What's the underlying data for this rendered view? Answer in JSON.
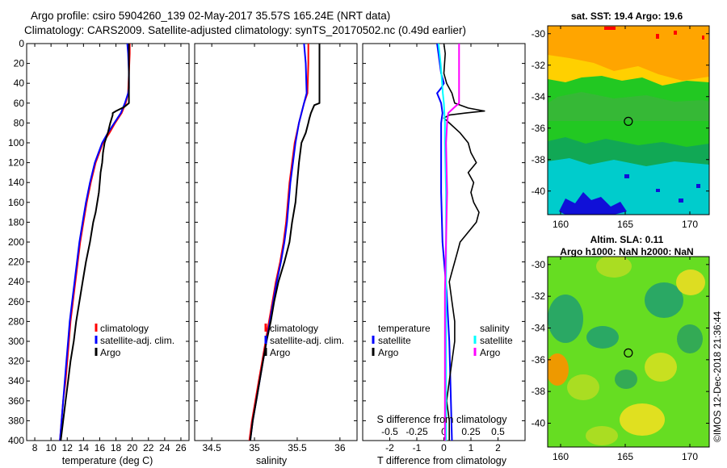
{
  "title_line1": "Argo profile: csiro 5904260_139 02-May-2017 35.57S 165.24E (NRT data)",
  "title_line2": "Climatology: CARS2009. Satellite-adjusted climatology: synTS_20170502.nc (0.49d earlier)",
  "colors": {
    "climatology": "#ff0000",
    "satellite": "#0000ff",
    "argo": "#000000",
    "sat_sal": "#00ffff",
    "argo_sal": "#ff00ff"
  },
  "legends": {
    "temperature": {
      "climatology": "climatology",
      "satellite": "satellite-adj. clim.",
      "argo": "Argo"
    },
    "salinity": {
      "climatology": "climatology",
      "satellite": "satellite-adj. clim.",
      "argo": "Argo"
    },
    "difference": {
      "temp_header": "temperature",
      "temp_satellite": "satellite",
      "temp_argo": "Argo",
      "sal_header": "salinity",
      "sal_satellite": "satellite",
      "sal_argo": "Argo"
    }
  },
  "sst_map": {
    "header": "sat. SST: 19.4 Argo: 19.6"
  },
  "sla_map": {
    "header1": "Altim. SLA: 0.11",
    "header2": "Argo h1000: NaN h2000: NaN"
  },
  "watermark": "©IMOS 12-Dec-2018 21:36:44",
  "chart_data": [
    {
      "type": "line",
      "name": "temperature",
      "xlabel": "temperature (deg C)",
      "ylabel": "",
      "xlim": [
        7,
        27
      ],
      "ylim": [
        400,
        0
      ],
      "xticks": [
        8,
        10,
        12,
        14,
        16,
        18,
        20,
        22,
        24,
        26
      ],
      "xtick_labels": [
        "8",
        "10",
        "12",
        "14",
        "16",
        "18",
        "20",
        "22",
        "24",
        "26"
      ],
      "yticks": [
        0,
        20,
        40,
        60,
        80,
        100,
        120,
        140,
        160,
        180,
        200,
        220,
        240,
        260,
        280,
        300,
        320,
        340,
        360,
        380,
        400
      ],
      "ytick_labels": [
        "0",
        "20",
        "40",
        "60",
        "80",
        "100",
        "120",
        "140",
        "160",
        "180",
        "200",
        "220",
        "240",
        "260",
        "280",
        "300",
        "320",
        "340",
        "360",
        "380",
        "400"
      ],
      "series": [
        {
          "name": "climatology",
          "depth": [
            0,
            10,
            30,
            50,
            60,
            70,
            80,
            90,
            100,
            120,
            140,
            160,
            180,
            200,
            220,
            240,
            260,
            280,
            300,
            320,
            340,
            360,
            380,
            400
          ],
          "values": [
            19.7,
            19.7,
            19.6,
            19.5,
            19.2,
            18.7,
            17.9,
            17.2,
            16.4,
            15.5,
            14.9,
            14.4,
            14.0,
            13.6,
            13.3,
            13.0,
            12.7,
            12.4,
            12.2,
            12.0,
            11.8,
            11.5,
            11.3,
            11.1
          ]
        },
        {
          "name": "satellite-adj. clim.",
          "depth": [
            0,
            10,
            30,
            45,
            50,
            60,
            70,
            80,
            90,
            100,
            120,
            140,
            160,
            180,
            200,
            220,
            240,
            260,
            280,
            300,
            320,
            340,
            360,
            380,
            400
          ],
          "values": [
            19.4,
            19.5,
            19.6,
            19.6,
            19.5,
            19.1,
            18.6,
            17.8,
            17.0,
            16.3,
            15.4,
            14.8,
            14.3,
            13.9,
            13.5,
            13.2,
            12.9,
            12.6,
            12.3,
            12.1,
            11.9,
            11.7,
            11.5,
            11.3,
            11.1
          ]
        },
        {
          "name": "Argo",
          "depth": [
            0,
            10,
            30,
            50,
            60,
            64,
            68,
            70,
            72,
            80,
            90,
            100,
            110,
            120,
            130,
            140,
            150,
            160,
            170,
            180,
            190,
            200,
            220,
            240,
            260,
            280,
            300,
            320,
            340,
            360,
            380,
            400
          ],
          "values": [
            19.6,
            19.6,
            19.6,
            19.6,
            19.6,
            19.0,
            18.0,
            17.6,
            17.6,
            17.3,
            17.0,
            16.6,
            16.4,
            16.3,
            16.1,
            16.0,
            15.9,
            15.7,
            15.5,
            15.2,
            15.0,
            14.8,
            14.3,
            13.9,
            13.5,
            13.1,
            12.8,
            12.4,
            12.1,
            11.8,
            11.5,
            11.2
          ]
        }
      ]
    },
    {
      "type": "line",
      "name": "salinity",
      "xlabel": "salinity",
      "ylabel": "",
      "xlim": [
        34.3,
        36.2
      ],
      "ylim": [
        400,
        0
      ],
      "xticks": [
        34.5,
        35,
        35.5,
        36
      ],
      "xtick_labels": [
        "34.5",
        "35",
        "35.5",
        "36"
      ],
      "series": [
        {
          "name": "climatology",
          "depth": [
            0,
            20,
            50,
            60,
            80,
            100,
            120,
            140,
            160,
            180,
            200,
            220,
            240,
            260,
            280,
            300,
            320,
            340,
            360,
            380,
            400
          ],
          "values": [
            35.63,
            35.63,
            35.62,
            35.58,
            35.52,
            35.47,
            35.44,
            35.41,
            35.39,
            35.37,
            35.34,
            35.3,
            35.25,
            35.21,
            35.17,
            35.13,
            35.09,
            35.05,
            35.01,
            34.97,
            34.94
          ]
        },
        {
          "name": "satellite-adj. clim.",
          "depth": [
            0,
            20,
            50,
            60,
            80,
            100,
            120,
            140,
            160,
            180,
            200,
            220,
            240,
            260,
            280,
            300,
            320,
            340,
            360,
            380,
            400
          ],
          "values": [
            35.58,
            35.6,
            35.61,
            35.58,
            35.52,
            35.48,
            35.45,
            35.42,
            35.4,
            35.38,
            35.35,
            35.31,
            35.26,
            35.22,
            35.18,
            35.14,
            35.1,
            35.06,
            35.02,
            34.98,
            34.95
          ]
        },
        {
          "name": "Argo",
          "depth": [
            0,
            5,
            20,
            50,
            60,
            62,
            70,
            76,
            80,
            90,
            100,
            120,
            140,
            160,
            180,
            200,
            220,
            240,
            260,
            280,
            300,
            320,
            340,
            360,
            380,
            400
          ],
          "values": [
            35.76,
            35.76,
            35.76,
            35.76,
            35.76,
            35.7,
            35.66,
            35.64,
            35.63,
            35.6,
            35.55,
            35.52,
            35.5,
            35.48,
            35.44,
            35.41,
            35.35,
            35.28,
            35.23,
            35.19,
            35.14,
            35.1,
            35.06,
            35.02,
            34.98,
            34.95
          ]
        }
      ]
    },
    {
      "type": "line",
      "name": "difference",
      "xlabel": "T difference from climatology",
      "x2label": "S difference from climatology",
      "xlim": [
        -3,
        3
      ],
      "x2lim": [
        -0.75,
        0.75
      ],
      "ylim": [
        400,
        0
      ],
      "xticks": [
        -2,
        -1,
        0,
        1,
        2
      ],
      "xtick_labels": [
        "-2",
        "-1",
        "0",
        "1",
        "2"
      ],
      "x2ticks": [
        -0.5,
        -0.25,
        0,
        0.25,
        0.5
      ],
      "x2tick_labels": [
        "-0.5",
        "-0.25",
        "0",
        "0.25",
        "0.5"
      ],
      "series": [
        {
          "name": "temperature satellite",
          "axis": "T",
          "depth": [
            0,
            10,
            30,
            40,
            45,
            50,
            60,
            70,
            80,
            100,
            150,
            200,
            250,
            300,
            350,
            400
          ],
          "values": [
            -0.25,
            -0.2,
            -0.1,
            0.0,
            -0.1,
            -0.25,
            -0.1,
            -0.05,
            -0.1,
            -0.1,
            -0.1,
            -0.05,
            0.1,
            0.2,
            0.25,
            0.3
          ]
        },
        {
          "name": "temperature Argo",
          "axis": "T",
          "depth": [
            0,
            10,
            30,
            40,
            50,
            60,
            65,
            68,
            70,
            72,
            75,
            80,
            90,
            100,
            110,
            120,
            130,
            140,
            150,
            160,
            170,
            180,
            190,
            200,
            210,
            220,
            230,
            240,
            260,
            280,
            300,
            320,
            340,
            360,
            380,
            400
          ],
          "values": [
            0.0,
            0.05,
            0.0,
            0.1,
            0.3,
            0.4,
            0.9,
            1.5,
            0.8,
            0.2,
            0.0,
            0.2,
            0.6,
            0.9,
            1.0,
            1.2,
            0.9,
            1.1,
            1.0,
            1.1,
            1.3,
            1.2,
            0.9,
            0.6,
            0.5,
            0.4,
            0.3,
            0.2,
            0.3,
            0.4,
            0.4,
            0.3,
            0.2,
            0.1,
            0.2,
            0.2
          ]
        },
        {
          "name": "salinity satellite",
          "axis": "S",
          "depth": [
            0,
            20,
            50,
            60,
            80,
            100,
            150,
            200,
            250,
            300,
            350,
            400
          ],
          "values": [
            -0.05,
            -0.03,
            -0.01,
            0.0,
            0.01,
            0.01,
            0.02,
            0.02,
            0.02,
            0.02,
            0.02,
            0.02
          ]
        },
        {
          "name": "salinity Argo",
          "axis": "S",
          "depth": [
            0,
            20,
            50,
            60,
            65,
            70,
            80,
            100,
            150,
            200,
            250,
            300,
            350,
            400
          ],
          "values": [
            0.14,
            0.14,
            0.14,
            0.14,
            0.09,
            0.04,
            0.03,
            0.02,
            0.03,
            0.02,
            0.01,
            0.01,
            0.01,
            0.01
          ]
        }
      ]
    },
    {
      "type": "heatmap",
      "name": "sst_map",
      "xlim": [
        159,
        171.5
      ],
      "ylim": [
        -41.5,
        -29.5
      ],
      "xticks": [
        160,
        165,
        170
      ],
      "xtick_labels": [
        "160",
        "165",
        "170"
      ],
      "yticks": [
        -30,
        -32,
        -34,
        -36,
        -38,
        -40
      ],
      "ytick_labels": [
        "-30",
        "-32",
        "-34",
        "-36",
        "-38",
        "-40"
      ],
      "marker": {
        "lon": 165.24,
        "lat": -35.57
      }
    },
    {
      "type": "heatmap",
      "name": "sla_map",
      "xlim": [
        159,
        171.5
      ],
      "ylim": [
        -41.5,
        -29.5
      ],
      "xticks": [
        160,
        165,
        170
      ],
      "xtick_labels": [
        "160",
        "165",
        "170"
      ],
      "yticks": [
        -30,
        -32,
        -34,
        -36,
        -38,
        -40
      ],
      "ytick_labels": [
        "-30",
        "-32",
        "-34",
        "-36",
        "-38",
        "-40"
      ],
      "marker": {
        "lon": 165.24,
        "lat": -35.57
      }
    }
  ]
}
